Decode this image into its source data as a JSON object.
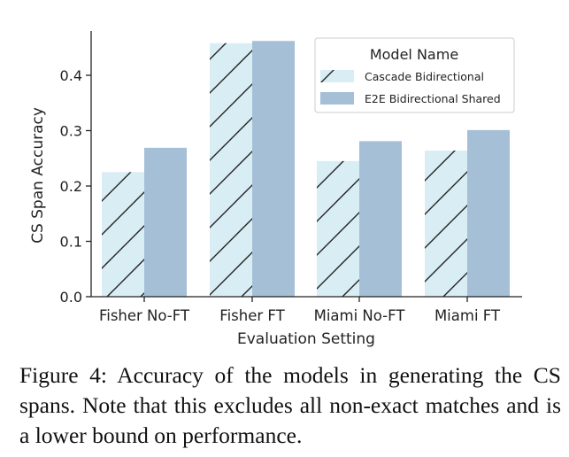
{
  "chart_data": {
    "type": "bar",
    "categories": [
      "Fisher No-FT",
      "Fisher FT",
      "Miami No-FT",
      "Miami FT"
    ],
    "series": [
      {
        "name": "Cascade Bidirectional",
        "values": [
          0.225,
          0.458,
          0.245,
          0.264
        ],
        "color": "#d9eef4",
        "pattern": "hatch"
      },
      {
        "name": "E2E Bidirectional Shared",
        "values": [
          0.269,
          0.462,
          0.281,
          0.301
        ],
        "color": "#a5bfd6",
        "pattern": "solid"
      }
    ],
    "xlabel": "Evaluation Setting",
    "ylabel": "CS Span Accuracy",
    "ylim": [
      0,
      0.48
    ],
    "yticks": [
      0.0,
      0.1,
      0.2,
      0.3,
      0.4
    ],
    "ytick_labels": [
      "0.0",
      "0.1",
      "0.2",
      "0.3",
      "0.4"
    ],
    "grid": false,
    "legend": {
      "title": "Model Name",
      "placement": "top-right"
    }
  },
  "caption": "Figure 4: Accuracy of the models in generating the CS spans. Note that this excludes all non-exact matches and is a lower bound on performance."
}
